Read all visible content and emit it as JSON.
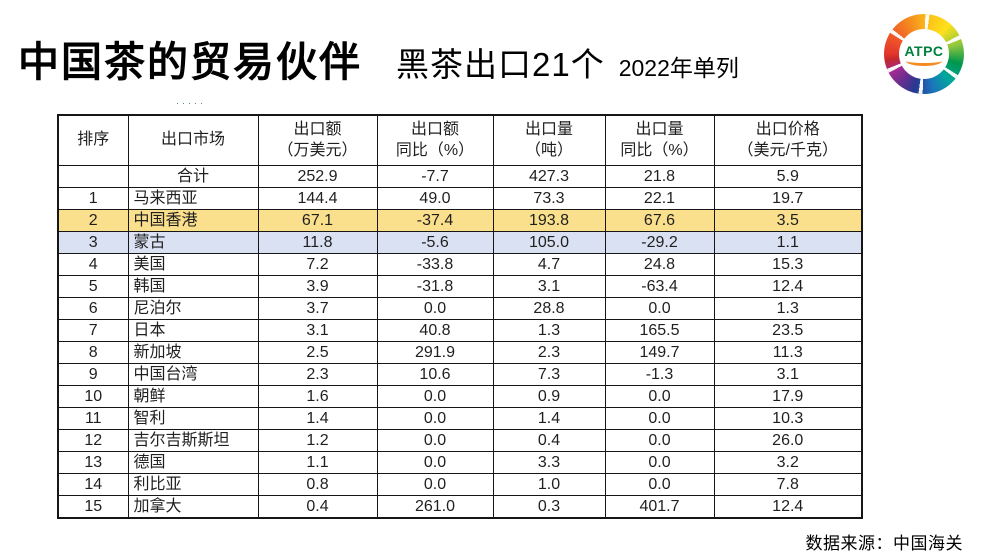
{
  "slide": {
    "title": "中国茶的贸易伙伴",
    "subtitle": "黑茶出口21个",
    "note": "2022年单列",
    "source": "数据来源：中国海关",
    "artifact": "·····"
  },
  "logo": {
    "text": "ATPC",
    "text_color": "#00813e",
    "arc_color": "#f58a1f",
    "ring_colors": [
      "#e2342b",
      "#f58a1f",
      "#fbc31a",
      "#8dc63f",
      "#00964b",
      "#1b75bc",
      "#283891",
      "#6b2d8f",
      "#a02c93"
    ]
  },
  "chart_data": {
    "type": "table",
    "title": "中国茶的贸易伙伴 黑茶出口21个 2022年单列",
    "total_label": "合计",
    "highlight_colors": {
      "yellow": "#FADF8C",
      "blue": "#D9E1F2"
    },
    "header": [
      {
        "l1": "排序",
        "l2": ""
      },
      {
        "l1": "出口市场",
        "l2": ""
      },
      {
        "l1": "出口额",
        "l2": "（万美元）"
      },
      {
        "l1": "出口额",
        "l2": "同比（%）"
      },
      {
        "l1": "出口量",
        "l2": "（吨）"
      },
      {
        "l1": "出口量",
        "l2": "同比（%）"
      },
      {
        "l1": "出口价格",
        "l2": "（美元/千克）"
      }
    ],
    "rows": [
      {
        "rank": "",
        "market": "合计",
        "value": "252.9",
        "value_yoy": "-7.7",
        "volume": "427.3",
        "volume_yoy": "21.8",
        "price": "5.9",
        "highlight": ""
      },
      {
        "rank": "1",
        "market": "马来西亚",
        "value": "144.4",
        "value_yoy": "49.0",
        "volume": "73.3",
        "volume_yoy": "22.1",
        "price": "19.7",
        "highlight": ""
      },
      {
        "rank": "2",
        "market": "中国香港",
        "value": "67.1",
        "value_yoy": "-37.4",
        "volume": "193.8",
        "volume_yoy": "67.6",
        "price": "3.5",
        "highlight": "yellow"
      },
      {
        "rank": "3",
        "market": "蒙古",
        "value": "11.8",
        "value_yoy": "-5.6",
        "volume": "105.0",
        "volume_yoy": "-29.2",
        "price": "1.1",
        "highlight": "blue"
      },
      {
        "rank": "4",
        "market": "美国",
        "value": "7.2",
        "value_yoy": "-33.8",
        "volume": "4.7",
        "volume_yoy": "24.8",
        "price": "15.3",
        "highlight": ""
      },
      {
        "rank": "5",
        "market": "韩国",
        "value": "3.9",
        "value_yoy": "-31.8",
        "volume": "3.1",
        "volume_yoy": "-63.4",
        "price": "12.4",
        "highlight": ""
      },
      {
        "rank": "6",
        "market": "尼泊尔",
        "value": "3.7",
        "value_yoy": "0.0",
        "volume": "28.8",
        "volume_yoy": "0.0",
        "price": "1.3",
        "highlight": ""
      },
      {
        "rank": "7",
        "market": "日本",
        "value": "3.1",
        "value_yoy": "40.8",
        "volume": "1.3",
        "volume_yoy": "165.5",
        "price": "23.5",
        "highlight": ""
      },
      {
        "rank": "8",
        "market": "新加坡",
        "value": "2.5",
        "value_yoy": "291.9",
        "volume": "2.3",
        "volume_yoy": "149.7",
        "price": "11.3",
        "highlight": ""
      },
      {
        "rank": "9",
        "market": "中国台湾",
        "value": "2.3",
        "value_yoy": "10.6",
        "volume": "7.3",
        "volume_yoy": "-1.3",
        "price": "3.1",
        "highlight": ""
      },
      {
        "rank": "10",
        "market": "朝鲜",
        "value": "1.6",
        "value_yoy": "0.0",
        "volume": "0.9",
        "volume_yoy": "0.0",
        "price": "17.9",
        "highlight": ""
      },
      {
        "rank": "11",
        "market": "智利",
        "value": "1.4",
        "value_yoy": "0.0",
        "volume": "1.4",
        "volume_yoy": "0.0",
        "price": "10.3",
        "highlight": ""
      },
      {
        "rank": "12",
        "market": "吉尔吉斯斯坦",
        "value": "1.2",
        "value_yoy": "0.0",
        "volume": "0.4",
        "volume_yoy": "0.0",
        "price": "26.0",
        "highlight": ""
      },
      {
        "rank": "13",
        "market": "德国",
        "value": "1.1",
        "value_yoy": "0.0",
        "volume": "3.3",
        "volume_yoy": "0.0",
        "price": "3.2",
        "highlight": ""
      },
      {
        "rank": "14",
        "market": "利比亚",
        "value": "0.8",
        "value_yoy": "0.0",
        "volume": "1.0",
        "volume_yoy": "0.0",
        "price": "7.8",
        "highlight": ""
      },
      {
        "rank": "15",
        "market": "加拿大",
        "value": "0.4",
        "value_yoy": "261.0",
        "volume": "0.3",
        "volume_yoy": "401.7",
        "price": "12.4",
        "highlight": ""
      }
    ]
  }
}
